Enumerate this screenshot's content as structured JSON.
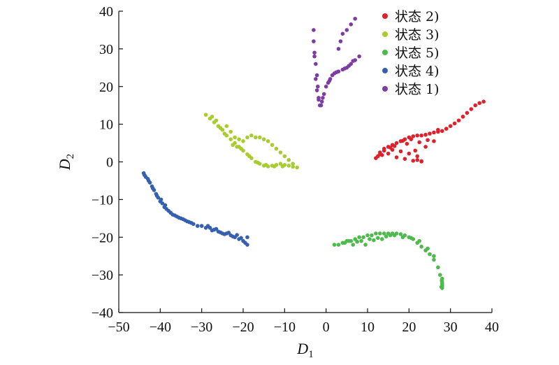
{
  "chart_data": {
    "type": "scatter",
    "xlabel": "D",
    "xlabel_sub": "1",
    "ylabel": "D",
    "ylabel_sub": "2",
    "xlim": [
      -50,
      40
    ],
    "ylim": [
      -40,
      40
    ],
    "xticks": [
      -50,
      -40,
      -30,
      -20,
      -10,
      0,
      10,
      20,
      30,
      40
    ],
    "yticks": [
      -40,
      -30,
      -20,
      -10,
      0,
      10,
      20,
      30,
      40
    ],
    "xtick_labels": [
      "−50",
      "−40",
      "−30",
      "−20",
      "−10",
      "0",
      "10",
      "20",
      "30",
      "40"
    ],
    "ytick_labels": [
      "−40",
      "−30",
      "−20",
      "−10",
      "0",
      "10",
      "20",
      "30",
      "40"
    ],
    "grid": false,
    "legend_position": "top-right",
    "series": [
      {
        "name": "状态 2)",
        "color": "#e0202a",
        "x": [
          12,
          12.5,
          13,
          14,
          15,
          16,
          17,
          18,
          19,
          20,
          21,
          22,
          23,
          24,
          25,
          26,
          27,
          28,
          29,
          30,
          31,
          32,
          33,
          34,
          35,
          36,
          37,
          38,
          13,
          14,
          16,
          18,
          20,
          22,
          24,
          26,
          17,
          19,
          21,
          23,
          15,
          16.5,
          18.5,
          20.5,
          22.5,
          24.5,
          27,
          13.5,
          15.5,
          19.5,
          21.5,
          22,
          23
        ],
        "y": [
          1,
          1.5,
          2,
          3,
          4,
          4.5,
          5,
          5.5,
          6,
          6.5,
          6.8,
          7,
          7,
          7.2,
          7.5,
          7.8,
          8,
          8.2,
          8.8,
          9.5,
          10.2,
          11,
          12,
          13,
          14,
          15,
          15.6,
          16,
          2.5,
          3.5,
          3.2,
          2.8,
          2.2,
          1.5,
          4,
          5.5,
          1.2,
          0.8,
          0.3,
          0.1,
          2.2,
          4.2,
          5.6,
          6,
          5.2,
          5.8,
          8.5,
          1.8,
          3.8,
          4.8,
          3,
          0.5,
          0.2
        ]
      },
      {
        "name": "状态 3)",
        "color": "#a8cc2c",
        "x": [
          -29,
          -28,
          -27,
          -26,
          -25,
          -24,
          -23,
          -22,
          -21,
          -20,
          -19,
          -18,
          -17,
          -16,
          -15,
          -14,
          -13,
          -12,
          -11,
          -10,
          -9,
          -8,
          -7,
          -23,
          -22,
          -21,
          -20,
          -19,
          -18,
          -17,
          -16,
          -15,
          -14,
          -13,
          -12,
          -11,
          -10,
          -9,
          -8,
          -25.5,
          -24.5,
          -22.5,
          -20.5,
          -18.5,
          -16.5,
          -14.5,
          -12.5,
          -10.5,
          -26.5,
          -27.5,
          -24,
          -21.5
        ],
        "y": [
          12.5,
          11.5,
          10.5,
          9.5,
          8.5,
          7,
          6,
          5,
          4,
          3,
          2,
          1,
          0,
          -0.5,
          -1,
          -1.2,
          -1,
          -0.8,
          -0.5,
          -0.8,
          -1,
          -1.3,
          -1.5,
          8,
          6.5,
          6,
          5.5,
          6.5,
          7,
          6.5,
          6.5,
          6,
          5.5,
          4.5,
          3.5,
          2.5,
          1.5,
          0.5,
          -0.5,
          9,
          7.5,
          4.5,
          3.5,
          1.5,
          -0.2,
          -0.8,
          -1.2,
          -1.2,
          11,
          12,
          9.5,
          4
        ]
      },
      {
        "name": "状态 5)",
        "color": "#4cbb4c",
        "x": [
          2,
          3,
          4,
          5,
          6,
          7,
          8,
          9,
          10,
          11,
          12,
          13,
          14,
          15,
          16,
          17,
          18,
          19,
          20,
          21,
          22,
          23,
          24,
          25,
          26,
          27,
          27.5,
          28,
          28,
          28,
          28,
          28,
          27.8,
          27.9,
          4.5,
          6.5,
          8.5,
          10.5,
          12.5,
          14.5,
          16.5,
          18.5,
          5.5,
          7.5,
          9.5,
          11.5,
          13.5,
          15.5,
          20.5,
          22.5,
          24.5,
          26
        ],
        "y": [
          -22,
          -22,
          -21.5,
          -21,
          -21,
          -20.5,
          -20,
          -20,
          -19.5,
          -19.5,
          -19,
          -19,
          -19,
          -19,
          -19,
          -19,
          -19.2,
          -19.5,
          -20,
          -20.5,
          -21.5,
          -22.5,
          -23.5,
          -24.5,
          -26,
          -28,
          -30,
          -31,
          -32,
          -33,
          -33.5,
          -32.5,
          -33.2,
          -31.5,
          -21.5,
          -22,
          -21,
          -20.5,
          -20.2,
          -19.8,
          -19.5,
          -20,
          -21,
          -21.2,
          -22,
          -20.8,
          -20.5,
          -19.5,
          -20.2,
          -21,
          -23,
          -25
        ]
      },
      {
        "name": "状态 4)",
        "color": "#3560b0",
        "x": [
          -44,
          -43.5,
          -43,
          -42.5,
          -42,
          -41.5,
          -41,
          -40.5,
          -40,
          -39.5,
          -39,
          -38.5,
          -38,
          -37,
          -36,
          -35,
          -34,
          -33,
          -32,
          -31,
          -30,
          -29,
          -28,
          -27,
          -26,
          -25,
          -24,
          -23,
          -22,
          -21,
          -20,
          -19.5,
          -19,
          -19,
          -43.8,
          -42.8,
          -41.8,
          -40.8,
          -39.8,
          -38.8,
          -37.5,
          -36.5,
          -35.5,
          -34.5,
          -33.5,
          -32.5,
          -27.5,
          -26.5,
          -25.5,
          -24.5,
          -23.5,
          -22.5,
          -21.5,
          -20.5,
          -28.5
        ],
        "y": [
          -3,
          -4,
          -4.5,
          -5.5,
          -6.5,
          -7.5,
          -8.5,
          -9.5,
          -10.5,
          -11,
          -12,
          -12.5,
          -13,
          -14,
          -14.5,
          -15,
          -15.5,
          -16,
          -16.5,
          -17,
          -17,
          -17.5,
          -17.5,
          -18,
          -18.5,
          -19,
          -19,
          -19.5,
          -20,
          -20.5,
          -21,
          -21.5,
          -20,
          -22,
          -3.5,
          -5,
          -7,
          -9,
          -10,
          -11.5,
          -13.5,
          -14.2,
          -14.8,
          -15.2,
          -15.8,
          -16.2,
          -18.2,
          -17.8,
          -18.7,
          -19.2,
          -18.8,
          -19.8,
          -19.4,
          -20.2,
          -17
        ]
      },
      {
        "name": "状态 1)",
        "color": "#7d3ca3",
        "x": [
          -3,
          -3,
          -2.8,
          -2.5,
          -2.2,
          -2,
          -1.8,
          -1.5,
          -1,
          -0.5,
          0,
          0.5,
          1,
          1.5,
          2,
          3,
          4,
          5,
          6,
          7,
          8,
          3,
          3.5,
          4,
          5,
          6,
          7,
          -2.5,
          -2.2,
          -1.8,
          -1.2,
          -0.8,
          0.8,
          2.5,
          4.5,
          5.5,
          6.5,
          -2.8
        ],
        "y": [
          35,
          32,
          29,
          26,
          23,
          20,
          17,
          15,
          16,
          18,
          20,
          21,
          22,
          23,
          23.5,
          24,
          24.5,
          25,
          26,
          27,
          28,
          30,
          32,
          34,
          35,
          36.5,
          38,
          22,
          19,
          16.5,
          15,
          17,
          21.5,
          23.8,
          24.8,
          25.5,
          26.8,
          28
        ]
      }
    ]
  }
}
